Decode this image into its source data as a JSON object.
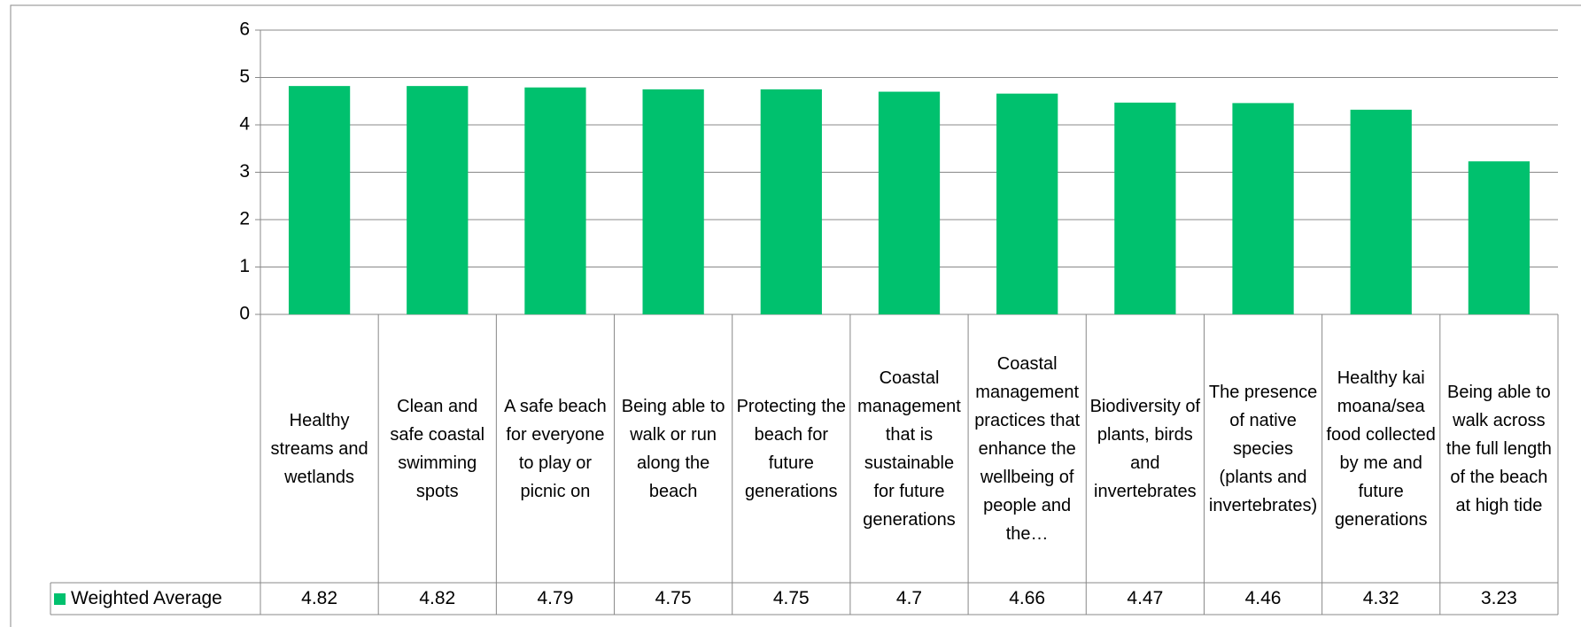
{
  "chart_data": {
    "type": "bar",
    "categories": [
      "Healthy streams and wetlands",
      "Clean and safe coastal swimming spots",
      "A safe beach for everyone to play or picnic on",
      "Being able to walk or run along the beach",
      "Protecting the beach for future generations",
      "Coastal management that is sustainable for future generations",
      "Coastal management practices that enhance the wellbeing of people and the…",
      "Biodiversity of plants, birds and invertebrates",
      "The presence of native species (plants and invertebrates)",
      "Healthy kai moana/sea food collected by me and future generations",
      "Being able to walk across the full length of the beach at high tide"
    ],
    "series": [
      {
        "name": "Weighted Average",
        "color": "#00c16e",
        "values": [
          4.82,
          4.82,
          4.79,
          4.75,
          4.75,
          4.7,
          4.66,
          4.47,
          4.46,
          4.32,
          3.23
        ]
      }
    ],
    "ylim": [
      0,
      6
    ],
    "yticks": [
      0,
      1,
      2,
      3,
      4,
      5,
      6
    ],
    "grid": true,
    "legend": "data-table"
  }
}
